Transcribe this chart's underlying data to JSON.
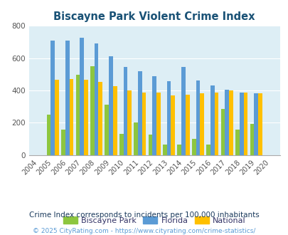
{
  "title": "Biscayne Park Violent Crime Index",
  "years": [
    2004,
    2005,
    2006,
    2007,
    2008,
    2009,
    2010,
    2011,
    2012,
    2013,
    2014,
    2015,
    2016,
    2017,
    2018,
    2019,
    2020
  ],
  "biscayne_park": [
    0,
    250,
    160,
    495,
    550,
    310,
    133,
    200,
    128,
    65,
    65,
    100,
    65,
    285,
    160,
    195,
    0
  ],
  "florida": [
    0,
    710,
    710,
    725,
    693,
    612,
    545,
    518,
    490,
    458,
    545,
    460,
    432,
    405,
    388,
    383,
    0
  ],
  "national": [
    0,
    468,
    470,
    466,
    453,
    428,
    401,
    388,
    387,
    368,
    375,
    382,
    386,
    400,
    386,
    382,
    0
  ],
  "bar_color_bp": "#8dc63f",
  "bar_color_fl": "#5b9bd5",
  "bar_color_na": "#ffc000",
  "bg_color": "#ddeef5",
  "ylim": [
    0,
    800
  ],
  "yticks": [
    0,
    200,
    400,
    600,
    800
  ],
  "subtitle": "Crime Index corresponds to incidents per 100,000 inhabitants",
  "footer": "© 2025 CityRating.com - https://www.cityrating.com/crime-statistics/",
  "legend_labels": [
    "Biscayne Park",
    "Florida",
    "National"
  ],
  "title_color": "#1a5276",
  "subtitle_color": "#1a3a5c",
  "footer_color": "#5b9bd5"
}
